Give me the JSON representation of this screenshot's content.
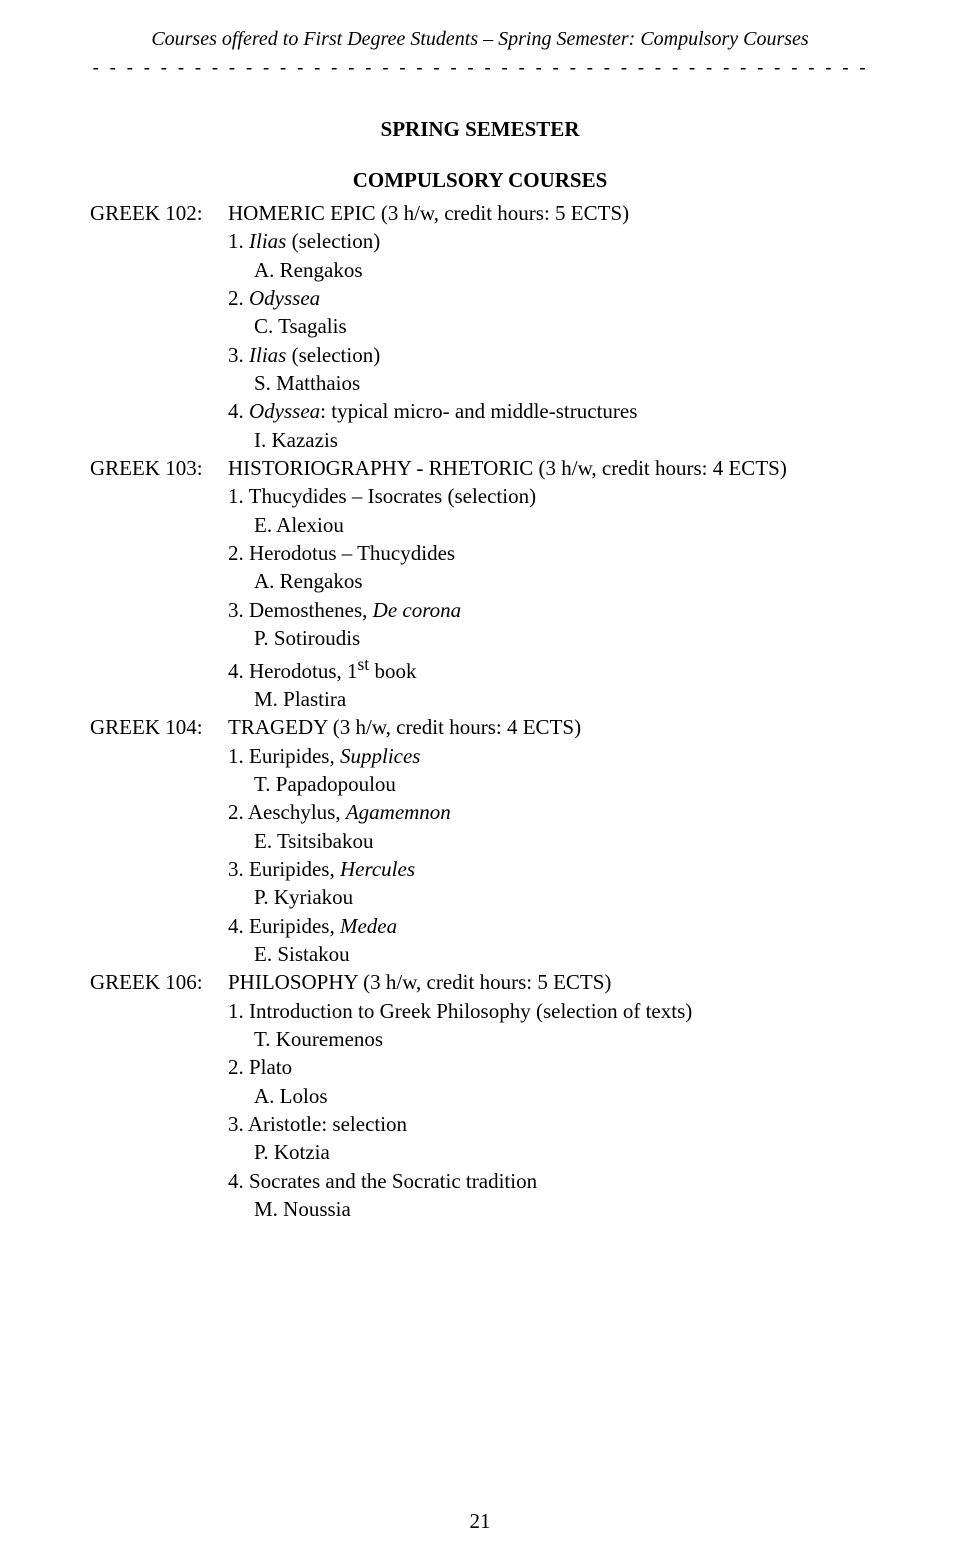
{
  "header": {
    "title": "Courses offered to First Degree Students – Spring Semester: Compulsory Courses",
    "separator": "-------------------------------------------------------------------------"
  },
  "headings": {
    "main": "SPRING SEMESTER",
    "sub": "COMPULSORY COURSES"
  },
  "courses": [
    {
      "code": "GREEK 102:",
      "title": "HOMERIC EPIC (3 h/w, credit hours: 5 ECTS)",
      "items": [
        {
          "num": "1. ",
          "label_italic": "Ilias",
          "label_after": " (selection)",
          "instructor": "A. Rengakos"
        },
        {
          "num": "2. ",
          "label_italic": "Odyssea",
          "label_after": "",
          "instructor": "C. Tsagalis"
        },
        {
          "num": "3. ",
          "label_italic": "Ilias",
          "label_after": " (selection)",
          "instructor": "S. Matthaios"
        },
        {
          "num": "4. ",
          "label_italic": "Odyssea",
          "label_after": ": typical micro- and middle-structures",
          "instructor": "I. Kazazis"
        }
      ]
    },
    {
      "code": "GREEK 103:",
      "title": "HISTORIOGRAPHY - RHETORIC (3 h/w, credit hours: 4 ECTS)",
      "items": [
        {
          "num": "1. ",
          "label": "Thucydides – Isocrates (selection)",
          "instructor": "E. Alexiou"
        },
        {
          "num": "2. ",
          "label": "Herodotus – Thucydides",
          "instructor": "A. Rengakos"
        },
        {
          "num": "3. ",
          "label_before": "Demosthenes, ",
          "label_italic": "De corona",
          "instructor": "P. Sotiroudis"
        },
        {
          "num": "4. ",
          "label_html": "Herodotus, 1<sup>st</sup> book",
          "instructor": "M. Plastira"
        }
      ]
    },
    {
      "code": "GREEK 104:",
      "title": "TRAGEDY (3 h/w, credit hours: 4 ECTS)",
      "items": [
        {
          "num": "1. ",
          "label_before": "Euripides, ",
          "label_italic": "Supplices",
          "instructor": "T. Papadopoulou"
        },
        {
          "num": "2. ",
          "label_before": "Aeschylus, ",
          "label_italic": "Agamemnon",
          "instructor": "E. Tsitsibakou"
        },
        {
          "num": "3. ",
          "label_before": "Euripides, ",
          "label_italic": "Hercules",
          "instructor": "P. Kyriakou"
        },
        {
          "num": "4. ",
          "label_before": "Euripides, ",
          "label_italic": "Medea",
          "instructor": "E. Sistakou"
        }
      ]
    },
    {
      "code": "GREEK 106:",
      "title": "PHILOSOPHY (3 h/w, credit hours: 5 ECTS)",
      "items": [
        {
          "num": "1. ",
          "label": "Introduction to Greek Philosophy (selection of texts)",
          "instructor": "T. Kouremenos"
        },
        {
          "num": "2. ",
          "label": "Plato",
          "instructor": "A. Lolos"
        },
        {
          "num": "3. ",
          "label": "Aristotle: selection",
          "instructor": "P. Kotzia"
        },
        {
          "num": "4. ",
          "label": "Socrates and the Socratic tradition",
          "instructor": "M. Noussia"
        }
      ]
    }
  ],
  "page_number": "21"
}
